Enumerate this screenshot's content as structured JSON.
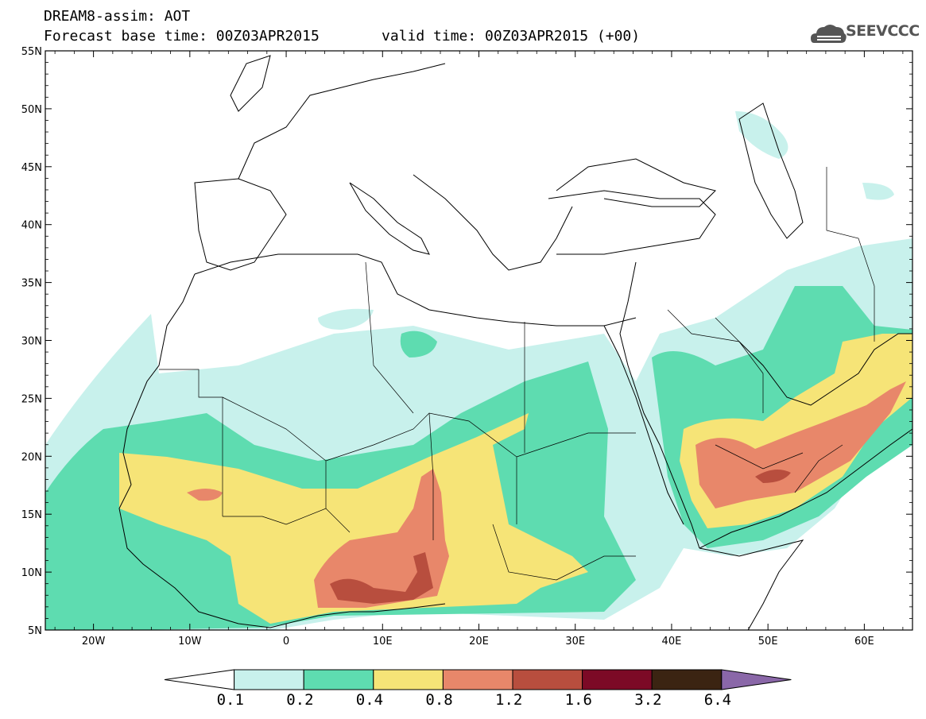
{
  "header": {
    "line1": "DREAM8-assim: AOT",
    "line2": "Forecast base time: 00Z03APR2015",
    "valid": "valid time: 00Z03APR2015 (+00)",
    "logo_text": "SEEVCCC"
  },
  "axes": {
    "lat_labels": [
      "55N",
      "50N",
      "45N",
      "40N",
      "35N",
      "30N",
      "25N",
      "20N",
      "15N",
      "10N",
      "5N"
    ],
    "lon_labels": [
      "20W",
      "10W",
      "0",
      "10E",
      "20E",
      "30E",
      "40E",
      "50E",
      "60E"
    ]
  },
  "legend": {
    "levels": [
      "0.1",
      "0.2",
      "0.4",
      "0.8",
      "1.2",
      "1.6",
      "3.2",
      "6.4"
    ],
    "colors": [
      "#ffffff",
      "#c8f1ec",
      "#5edcb0",
      "#f6e477",
      "#e8876a",
      "#b84e3e",
      "#7c0a26",
      "#3b2412",
      "#8a67a8"
    ]
  },
  "colors": {
    "c1": "#c8f1ec",
    "c2": "#5edcb0",
    "c3": "#f6e477",
    "c4": "#e8876a",
    "c5": "#b84e3e"
  }
}
